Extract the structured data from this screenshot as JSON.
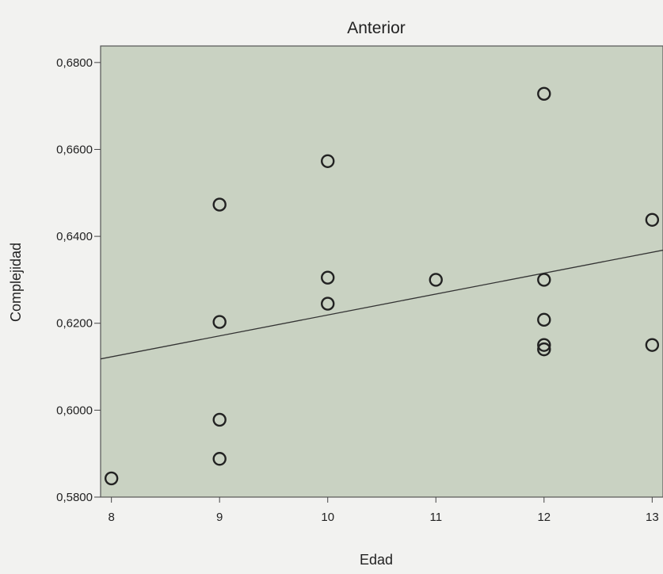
{
  "chart_data": {
    "type": "scatter",
    "title": "Anterior",
    "xlabel": "Edad",
    "ylabel": "Complejidad",
    "xlim": [
      7.9,
      13.1
    ],
    "ylim": [
      0.58,
      0.6838
    ],
    "x_ticks": [
      "8",
      "9",
      "10",
      "11",
      "12",
      "13"
    ],
    "y_ticks": [
      "0,5800",
      "0,6000",
      "0,6200",
      "0,6400",
      "0,6600",
      "0,6800"
    ],
    "grid": false,
    "legend": "none",
    "points": [
      {
        "x": 8,
        "y": 0.5843
      },
      {
        "x": 9,
        "y": 0.5888
      },
      {
        "x": 9,
        "y": 0.5978
      },
      {
        "x": 9,
        "y": 0.6203
      },
      {
        "x": 9,
        "y": 0.6473
      },
      {
        "x": 10,
        "y": 0.6245
      },
      {
        "x": 10,
        "y": 0.6305
      },
      {
        "x": 10,
        "y": 0.6573
      },
      {
        "x": 11,
        "y": 0.63
      },
      {
        "x": 12,
        "y": 0.614
      },
      {
        "x": 12,
        "y": 0.615
      },
      {
        "x": 12,
        "y": 0.6208
      },
      {
        "x": 12,
        "y": 0.63
      },
      {
        "x": 12,
        "y": 0.6728
      },
      {
        "x": 13,
        "y": 0.615
      },
      {
        "x": 13,
        "y": 0.6438
      }
    ],
    "fit_line": {
      "x": [
        7.9,
        13.2
      ],
      "y": [
        0.6118,
        0.6373
      ]
    },
    "colors": {
      "plot_bg": "#c9d2c2",
      "marker": "#222222",
      "page_bg": "#f2f2f0"
    }
  }
}
